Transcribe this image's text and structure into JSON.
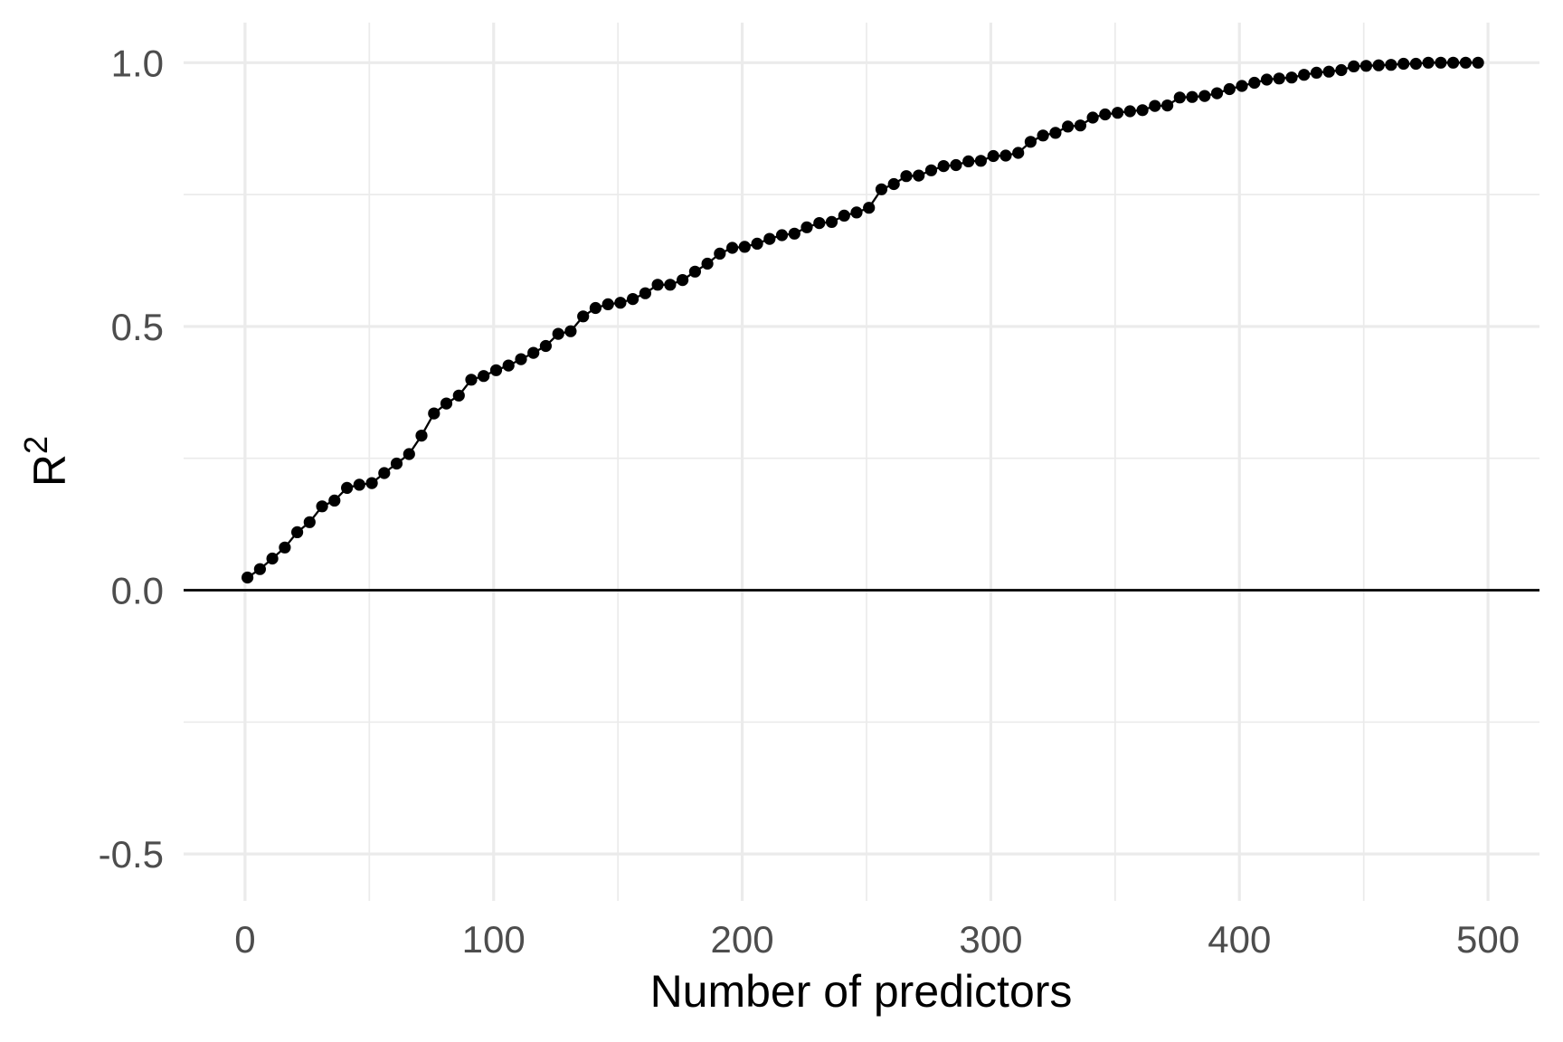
{
  "chart_data": {
    "type": "line",
    "title": "",
    "xlabel": "Number of predictors",
    "ylabel": "R²",
    "ylabel_base": "R",
    "ylabel_sup": "2",
    "legend": "none",
    "grid": "major+minor",
    "xlim": [
      -24.7,
      520.7
    ],
    "ylim": [
      -0.589,
      1.076
    ],
    "x_tick_values": [
      0,
      100,
      200,
      300,
      400,
      500
    ],
    "x_tick_labels": [
      "0",
      "100",
      "200",
      "300",
      "400",
      "500"
    ],
    "y_tick_values": [
      1.0,
      0.5,
      0.0,
      -0.5
    ],
    "y_tick_labels": [
      "1.0",
      "0.5",
      "0.0",
      "-0.5"
    ],
    "x_minor_values": [
      50,
      150,
      250,
      350,
      450
    ],
    "y_minor_values": [
      0.75,
      0.25,
      -0.25
    ],
    "hline_y": 0,
    "colors": {
      "point": "#000000",
      "line": "#000000",
      "grid": "#ebebeb",
      "tick_label": "#4d4d4d",
      "axis_title": "#000000",
      "zero_line": "#000000",
      "background": "#ffffff"
    },
    "series": [
      {
        "name": "R-squared",
        "x": [
          1,
          6,
          11,
          16,
          21,
          26,
          31,
          36,
          41,
          46,
          51,
          56,
          61,
          66,
          71,
          76,
          81,
          86,
          91,
          96,
          101,
          106,
          111,
          116,
          121,
          126,
          131,
          136,
          141,
          146,
          151,
          156,
          161,
          166,
          171,
          176,
          181,
          186,
          191,
          196,
          201,
          206,
          211,
          216,
          221,
          226,
          231,
          236,
          241,
          246,
          251,
          256,
          261,
          266,
          271,
          276,
          281,
          286,
          291,
          296,
          301,
          306,
          311,
          316,
          321,
          326,
          331,
          336,
          341,
          346,
          351,
          356,
          361,
          366,
          371,
          376,
          381,
          386,
          391,
          396,
          401,
          406,
          411,
          416,
          421,
          426,
          431,
          436,
          441,
          446,
          451,
          456,
          461,
          466,
          471,
          476,
          481,
          486,
          491,
          496
        ],
        "y": [
          0.024,
          0.04,
          0.06,
          0.081,
          0.11,
          0.129,
          0.159,
          0.17,
          0.194,
          0.2,
          0.203,
          0.222,
          0.24,
          0.258,
          0.293,
          0.335,
          0.354,
          0.369,
          0.399,
          0.406,
          0.417,
          0.426,
          0.438,
          0.45,
          0.463,
          0.486,
          0.491,
          0.519,
          0.535,
          0.542,
          0.545,
          0.552,
          0.563,
          0.579,
          0.579,
          0.588,
          0.604,
          0.619,
          0.638,
          0.649,
          0.651,
          0.657,
          0.666,
          0.673,
          0.676,
          0.688,
          0.696,
          0.698,
          0.71,
          0.716,
          0.725,
          0.76,
          0.77,
          0.785,
          0.786,
          0.796,
          0.804,
          0.806,
          0.813,
          0.814,
          0.823,
          0.824,
          0.829,
          0.85,
          0.862,
          0.867,
          0.879,
          0.881,
          0.896,
          0.902,
          0.905,
          0.908,
          0.91,
          0.918,
          0.919,
          0.934,
          0.935,
          0.937,
          0.942,
          0.95,
          0.956,
          0.962,
          0.968,
          0.97,
          0.972,
          0.977,
          0.981,
          0.983,
          0.986,
          0.993,
          0.994,
          0.995,
          0.996,
          0.998,
          0.998,
          1.0,
          1.0,
          1.0,
          1.0,
          1.0
        ]
      }
    ]
  }
}
